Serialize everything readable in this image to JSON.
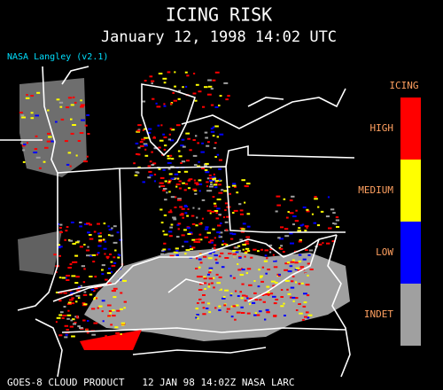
{
  "header": {
    "title": "ICING RISK",
    "subtitle": "January 12, 1998 14:02 UTC",
    "credit": "NASA Langley (v2.1)"
  },
  "legend": {
    "title": "ICING",
    "items": [
      {
        "label": "HIGH",
        "color": "#ff0000"
      },
      {
        "label": "MEDIUM",
        "color": "#ffff00"
      },
      {
        "label": "LOW",
        "color": "#0000ff"
      },
      {
        "label": "INDET",
        "color": "#a0a0a0"
      }
    ]
  },
  "footer": {
    "text": "GOES-8 CLOUD PRODUCT   12 JAN 98 14:02Z NASA LARC"
  }
}
